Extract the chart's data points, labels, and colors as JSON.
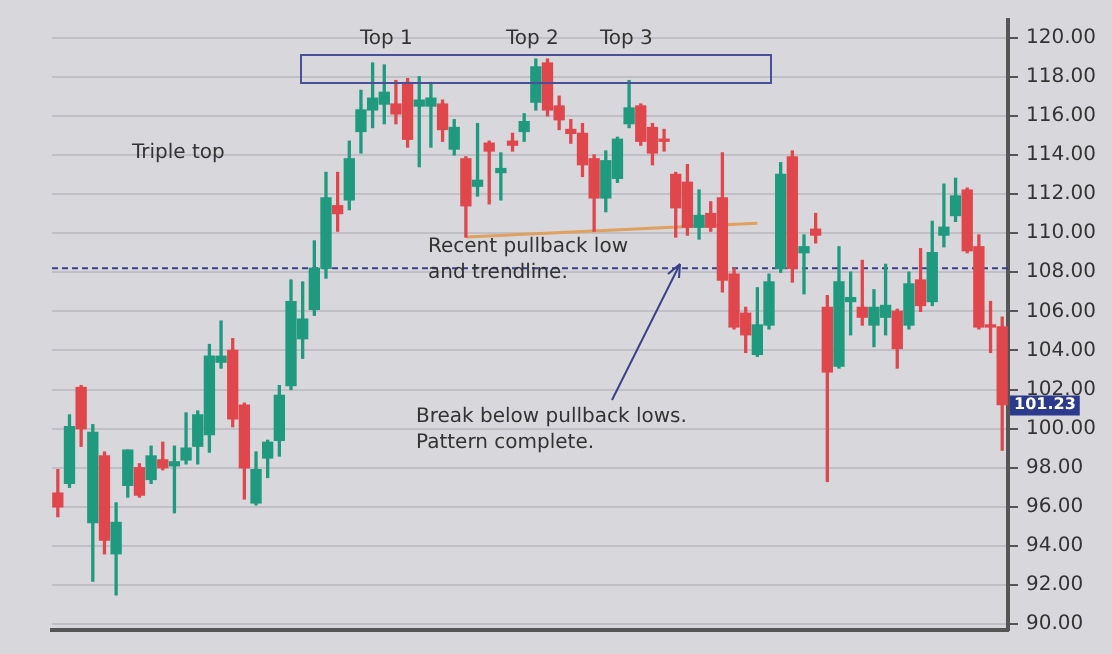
{
  "chart_data": {
    "type": "candlestick",
    "categories": [
      null,
      null,
      null,
      null,
      null,
      null,
      null,
      null,
      null,
      null,
      null,
      null,
      null,
      null,
      null,
      null,
      null,
      null,
      null,
      null,
      null,
      null,
      null,
      null,
      null,
      null,
      null,
      null,
      null,
      null,
      null,
      null,
      null,
      null,
      null,
      null,
      null,
      null,
      null,
      null,
      null,
      null,
      null,
      null,
      null,
      null,
      null,
      null,
      null,
      null,
      null,
      null,
      null,
      null,
      null,
      null,
      null,
      null,
      null,
      null,
      null,
      null,
      null,
      null,
      null,
      null,
      null,
      null,
      null,
      null,
      null,
      null,
      null,
      null,
      null,
      null,
      null,
      null,
      null,
      null,
      null,
      null
    ],
    "ohlc": [
      [
        96.7,
        97.9,
        95.5,
        96.0
      ],
      [
        97.2,
        100.7,
        97.0,
        100.1
      ],
      [
        102.1,
        102.2,
        99.1,
        100.0
      ],
      [
        95.2,
        100.2,
        92.2,
        99.8
      ],
      [
        98.6,
        98.8,
        93.6,
        94.3
      ],
      [
        93.6,
        96.2,
        91.5,
        95.2
      ],
      [
        97.1,
        98.9,
        96.5,
        98.9
      ],
      [
        98.0,
        98.2,
        96.5,
        96.6
      ],
      [
        97.4,
        99.1,
        97.2,
        98.6
      ],
      [
        98.4,
        99.3,
        97.9,
        98.0
      ],
      [
        98.1,
        99.1,
        95.7,
        98.3
      ],
      [
        98.4,
        100.8,
        98.2,
        99.0
      ],
      [
        99.1,
        100.9,
        98.2,
        100.7
      ],
      [
        99.7,
        104.3,
        98.8,
        103.7
      ],
      [
        103.4,
        105.5,
        103.1,
        103.7
      ],
      [
        104.0,
        104.6,
        100.1,
        100.5
      ],
      [
        101.2,
        101.3,
        96.4,
        98.0
      ],
      [
        96.2,
        98.8,
        96.1,
        97.9
      ],
      [
        98.5,
        99.4,
        97.5,
        99.3
      ],
      [
        99.4,
        102.2,
        98.6,
        101.7
      ],
      [
        102.2,
        107.6,
        102.0,
        106.5
      ],
      [
        104.6,
        107.5,
        103.6,
        105.6
      ],
      [
        106.1,
        109.6,
        105.8,
        108.2
      ],
      [
        108.2,
        113.1,
        107.7,
        111.8
      ],
      [
        111.4,
        113.1,
        110.1,
        111.0
      ],
      [
        111.7,
        114.7,
        111.2,
        113.8
      ],
      [
        115.2,
        117.3,
        114.1,
        116.3
      ],
      [
        116.3,
        118.7,
        115.4,
        116.9
      ],
      [
        116.6,
        118.6,
        115.6,
        117.2
      ],
      [
        116.6,
        117.8,
        115.6,
        116.1
      ],
      [
        117.7,
        117.9,
        114.4,
        114.8
      ],
      [
        116.5,
        118.0,
        113.4,
        116.8
      ],
      [
        116.5,
        117.7,
        114.4,
        116.9
      ],
      [
        116.6,
        116.8,
        114.7,
        115.3
      ],
      [
        114.3,
        115.8,
        114.0,
        115.4
      ],
      [
        113.8,
        113.9,
        109.8,
        111.4
      ],
      [
        112.4,
        115.6,
        111.9,
        112.7
      ],
      [
        114.6,
        114.7,
        111.5,
        114.2
      ],
      [
        113.1,
        114.1,
        111.7,
        113.3
      ],
      [
        114.7,
        115.1,
        114.2,
        114.5
      ],
      [
        115.2,
        116.1,
        114.7,
        115.7
      ],
      [
        116.7,
        118.9,
        116.3,
        118.5
      ],
      [
        118.7,
        118.9,
        116.0,
        116.3
      ],
      [
        116.5,
        117.0,
        115.3,
        115.8
      ],
      [
        115.3,
        115.8,
        114.6,
        115.1
      ],
      [
        115.1,
        115.6,
        112.9,
        113.5
      ],
      [
        113.8,
        114.0,
        110.1,
        111.8
      ],
      [
        111.8,
        114.2,
        111.1,
        113.7
      ],
      [
        112.8,
        114.9,
        112.6,
        114.8
      ],
      [
        115.6,
        117.8,
        115.4,
        116.4
      ],
      [
        116.5,
        116.6,
        114.5,
        114.7
      ],
      [
        115.4,
        115.6,
        113.5,
        114.1
      ],
      [
        114.8,
        115.3,
        114.2,
        114.7
      ],
      [
        113.0,
        113.1,
        109.8,
        111.3
      ],
      [
        112.6,
        113.5,
        109.9,
        110.3
      ],
      [
        110.3,
        112.2,
        109.7,
        110.9
      ],
      [
        111.0,
        111.6,
        110.1,
        110.3
      ],
      [
        111.8,
        114.1,
        107.0,
        107.6
      ],
      [
        107.9,
        108.2,
        105.1,
        105.2
      ],
      [
        105.9,
        106.2,
        103.9,
        104.8
      ],
      [
        103.8,
        107.2,
        103.7,
        105.3
      ],
      [
        105.3,
        107.9,
        105.1,
        107.5
      ],
      [
        108.2,
        113.6,
        108.0,
        113.0
      ],
      [
        113.9,
        114.2,
        107.5,
        108.2
      ],
      [
        109.0,
        109.9,
        106.9,
        109.3
      ],
      [
        110.2,
        111.0,
        109.5,
        109.9
      ],
      [
        106.2,
        106.8,
        97.3,
        102.9
      ],
      [
        103.2,
        109.3,
        103.1,
        107.5
      ],
      [
        106.5,
        108.0,
        104.8,
        106.7
      ],
      [
        106.2,
        108.6,
        105.3,
        105.7
      ],
      [
        105.3,
        107.1,
        104.2,
        106.2
      ],
      [
        105.7,
        108.4,
        104.8,
        106.3
      ],
      [
        106.0,
        106.1,
        103.1,
        104.1
      ],
      [
        105.3,
        108.0,
        105.1,
        107.4
      ],
      [
        107.6,
        109.2,
        106.0,
        106.3
      ],
      [
        106.5,
        110.6,
        106.3,
        109.0
      ],
      [
        109.9,
        112.5,
        109.3,
        110.3
      ],
      [
        110.9,
        112.8,
        110.6,
        111.9
      ],
      [
        112.2,
        112.3,
        109.0,
        109.1
      ],
      [
        109.3,
        109.9,
        105.1,
        105.2
      ],
      [
        105.3,
        106.5,
        103.9,
        105.2
      ],
      [
        105.2,
        105.7,
        98.9,
        101.23
      ]
    ],
    "colors": [
      "#e0474c",
      "#1f9a7e",
      "#e0474c",
      "#1f9a7e",
      "#e0474c",
      "#1f9a7e",
      "#1f9a7e",
      "#e0474c",
      "#1f9a7e",
      "#e0474c",
      "#1f9a7e",
      "#1f9a7e",
      "#1f9a7e",
      "#1f9a7e",
      "#1f9a7e",
      "#e0474c",
      "#e0474c",
      "#1f9a7e",
      "#1f9a7e",
      "#1f9a7e",
      "#1f9a7e",
      "#1f9a7e",
      "#1f9a7e",
      "#1f9a7e",
      "#e0474c",
      "#1f9a7e",
      "#1f9a7e",
      "#1f9a7e",
      "#1f9a7e",
      "#e0474c",
      "#e0474c",
      "#1f9a7e",
      "#1f9a7e",
      "#e0474c",
      "#1f9a7e",
      "#e0474c",
      "#1f9a7e",
      "#e0474c",
      "#1f9a7e",
      "#e0474c",
      "#1f9a7e",
      "#1f9a7e",
      "#e0474c",
      "#e0474c",
      "#e0474c",
      "#e0474c",
      "#e0474c",
      "#1f9a7e",
      "#1f9a7e",
      "#1f9a7e",
      "#e0474c",
      "#e0474c",
      "#e0474c",
      "#e0474c",
      "#e0474c",
      "#1f9a7e",
      "#e0474c",
      "#e0474c",
      "#e0474c",
      "#e0474c",
      "#1f9a7e",
      "#1f9a7e",
      "#1f9a7e",
      "#e0474c",
      "#1f9a7e",
      "#e0474c",
      "#e0474c",
      "#1f9a7e",
      "#1f9a7e",
      "#e0474c",
      "#1f9a7e",
      "#1f9a7e",
      "#e0474c",
      "#1f9a7e",
      "#e0474c",
      "#1f9a7e",
      "#1f9a7e",
      "#1f9a7e",
      "#e0474c",
      "#e0474c",
      "#e0474c",
      "#e0474c"
    ],
    "series": [
      {
        "type": "line",
        "color": "#e0a060",
        "values": [
          null,
          null,
          null,
          null,
          null,
          null,
          null,
          null,
          null,
          null,
          null,
          null,
          null,
          null,
          null,
          null,
          null,
          null,
          null,
          null,
          null,
          null,
          null,
          null,
          null,
          null,
          null,
          null,
          null,
          null,
          null,
          null,
          null,
          null,
          null,
          109.8,
          null,
          null,
          null,
          null,
          null,
          null,
          null,
          null,
          null,
          null,
          null,
          null,
          null,
          null,
          null,
          null,
          null,
          null,
          null,
          null,
          null,
          null,
          null,
          null,
          110.5,
          null,
          null,
          null,
          null,
          null,
          null,
          null,
          null,
          null,
          null,
          null,
          null,
          null,
          null,
          null,
          null,
          null,
          null,
          null,
          null,
          null
        ]
      }
    ],
    "ylim": [
      89.7,
      120.9
    ],
    "yticks": [
      {
        "value": 90,
        "label": "90.00"
      },
      {
        "value": 92,
        "label": "92.00"
      },
      {
        "value": 94,
        "label": "94.00"
      },
      {
        "value": 96,
        "label": "96.00"
      },
      {
        "value": 98,
        "label": "98.00"
      },
      {
        "value": 100,
        "label": "100.00"
      },
      {
        "value": 102,
        "label": "102.00"
      },
      {
        "value": 104,
        "label": "104.00"
      },
      {
        "value": 106,
        "label": "106.00"
      },
      {
        "value": 108,
        "label": "108.00"
      },
      {
        "value": 110,
        "label": "110.00"
      },
      {
        "value": 112,
        "label": "112.00"
      },
      {
        "value": 114,
        "label": "114.00"
      },
      {
        "value": 116,
        "label": "116.00"
      },
      {
        "value": 118,
        "label": "118.00"
      },
      {
        "value": 120,
        "label": "120.00"
      }
    ],
    "grid": "y",
    "tick_labels": "y",
    "ref_lines": [
      {
        "axis": "y",
        "value": 108.2,
        "color": "#3a3f8a",
        "line_style": "dashed"
      }
    ],
    "annotations": [
      "Top 1",
      "Top 2",
      "Top 3",
      "Triple top",
      "Recent pullback low and trendline.",
      "Break below pullback lows. Pattern complete.",
      "101.23"
    ]
  }
}
